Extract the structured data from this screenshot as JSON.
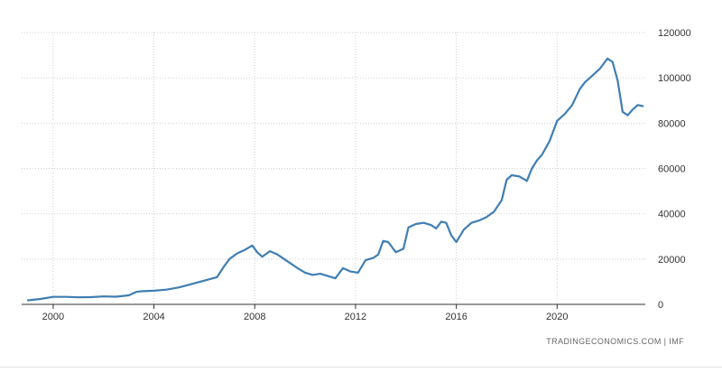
{
  "chart_data": {
    "type": "line",
    "title": "",
    "xlabel": "",
    "ylabel": "",
    "source": "TRADINGECONOMICS.COM | IMF",
    "line_color": "#3f7eb3",
    "grid_color": "#cfcfcf",
    "grid": true,
    "xlim": [
      1998.75,
      2023.5
    ],
    "ylim": [
      0,
      120000
    ],
    "x_ticks": [
      2000,
      2004,
      2008,
      2012,
      2016,
      2020
    ],
    "x_tick_labels": [
      "2000",
      "2004",
      "2008",
      "2012",
      "2016",
      "2020"
    ],
    "y_ticks": [
      0,
      20000,
      40000,
      60000,
      80000,
      100000,
      120000
    ],
    "y_tick_labels": [
      "0",
      "20000",
      "40000",
      "60000",
      "80000",
      "100000",
      "120000"
    ],
    "y_axis_side": "right",
    "series": [
      {
        "x": [
          1999.0,
          1999.5,
          2000.0,
          2000.5,
          2001.0,
          2001.5,
          2002.0,
          2002.5,
          2003.0,
          2003.3,
          2003.5,
          2004.0,
          2004.5,
          2005.0,
          2005.5,
          2006.0,
          2006.5,
          2006.8,
          2007.0,
          2007.3,
          2007.6,
          2007.9,
          2008.1,
          2008.3,
          2008.6,
          2008.9,
          2009.3,
          2009.7,
          2010.0,
          2010.3,
          2010.6,
          2010.9,
          2011.2,
          2011.5,
          2011.8,
          2012.1,
          2012.4,
          2012.7,
          2012.9,
          2013.1,
          2013.3,
          2013.6,
          2013.9,
          2014.1,
          2014.4,
          2014.7,
          2015.0,
          2015.2,
          2015.4,
          2015.6,
          2015.8,
          2016.0,
          2016.3,
          2016.6,
          2016.9,
          2017.2,
          2017.5,
          2017.8,
          2018.0,
          2018.2,
          2018.5,
          2018.8,
          2019.0,
          2019.2,
          2019.4,
          2019.7,
          2020.0,
          2020.3,
          2020.6,
          2020.9,
          2021.1,
          2021.4,
          2021.7,
          2021.9,
          2022.0,
          2022.2,
          2022.4,
          2022.6,
          2022.8,
          2023.0,
          2023.2,
          2023.4
        ],
        "y": [
          1800,
          2400,
          3300,
          3300,
          3100,
          3200,
          3500,
          3400,
          4000,
          5500,
          5800,
          6000,
          6500,
          7500,
          9000,
          10500,
          12000,
          17000,
          20000,
          22500,
          24000,
          26000,
          23000,
          21000,
          23500,
          22000,
          19000,
          16000,
          14000,
          13000,
          13500,
          12500,
          11500,
          16000,
          14500,
          14000,
          19500,
          20500,
          22000,
          28000,
          27500,
          23000,
          24500,
          34000,
          35500,
          36000,
          35000,
          33500,
          36500,
          36000,
          30500,
          27500,
          33000,
          36000,
          37000,
          38500,
          41000,
          46000,
          55000,
          57000,
          56500,
          54500,
          60000,
          63500,
          66000,
          72000,
          81000,
          84000,
          88000,
          95000,
          98000,
          101000,
          104000,
          107000,
          108500,
          107000,
          99000,
          85000,
          83500,
          86000,
          88000,
          87500
        ]
      }
    ]
  }
}
